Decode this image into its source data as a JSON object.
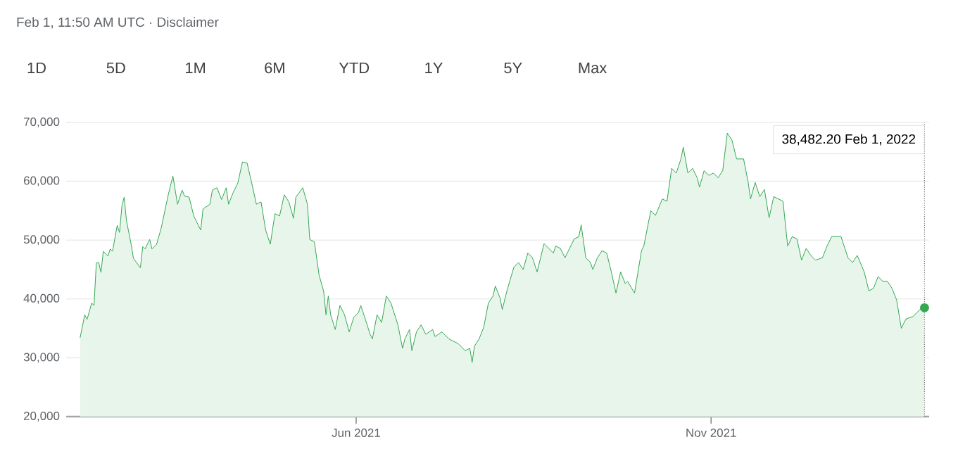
{
  "chart_data": {
    "type": "area",
    "subtitle": "Feb 1, 11:50 AM UTC · Disclaimer",
    "color": "#34a853",
    "grid": "y",
    "xlim": [
      "2021-01-27",
      "2022-02-03"
    ],
    "xticks": [
      {
        "value": "2021-06-01",
        "label": "Jun 2021"
      },
      {
        "value": "2021-11-01",
        "label": "Nov 2021"
      }
    ],
    "ylim": [
      20000,
      70000
    ],
    "ref_lines": [
      {
        "axis": "x",
        "value": "2022-02-01",
        "color": "#737373",
        "line_style": "dotted"
      }
    ],
    "yticks": [
      {
        "value": 20000,
        "label": "20,000"
      },
      {
        "value": 30000,
        "label": "30,000"
      },
      {
        "value": 40000,
        "label": "40,000"
      },
      {
        "value": 50000,
        "label": "50,000"
      },
      {
        "value": 60000,
        "label": "60,000"
      },
      {
        "value": 70000,
        "label": "70,000"
      }
    ],
    "annotations": [
      "1D",
      "5D",
      "1M",
      "6M",
      "YTD",
      "1Y",
      "5Y",
      "Max",
      "38,482.20 Feb 1, 2022"
    ],
    "x": [
      "2021-02-02",
      "2021-02-04",
      "2021-02-05",
      "2021-02-07",
      "2021-02-08",
      "2021-02-09",
      "2021-02-10",
      "2021-02-11",
      "2021-02-12",
      "2021-02-14",
      "2021-02-15",
      "2021-02-16",
      "2021-02-18",
      "2021-02-19",
      "2021-02-20",
      "2021-02-21",
      "2021-02-22",
      "2021-02-24",
      "2021-02-25",
      "2021-02-28",
      "2021-03-01",
      "2021-03-02",
      "2021-03-04",
      "2021-03-05",
      "2021-03-07",
      "2021-03-09",
      "2021-03-12",
      "2021-03-14",
      "2021-03-16",
      "2021-03-18",
      "2021-03-19",
      "2021-03-21",
      "2021-03-23",
      "2021-03-26",
      "2021-03-27",
      "2021-03-30",
      "2021-03-31",
      "2021-04-02",
      "2021-04-04",
      "2021-04-06",
      "2021-04-07",
      "2021-04-09",
      "2021-04-11",
      "2021-04-13",
      "2021-04-15",
      "2021-04-17",
      "2021-04-19",
      "2021-04-21",
      "2021-04-23",
      "2021-04-25",
      "2021-04-27",
      "2021-04-29",
      "2021-05-01",
      "2021-05-03",
      "2021-05-05",
      "2021-05-06",
      "2021-05-09",
      "2021-05-11",
      "2021-05-12",
      "2021-05-14",
      "2021-05-16",
      "2021-05-18",
      "2021-05-19",
      "2021-05-20",
      "2021-05-21",
      "2021-05-23",
      "2021-05-25",
      "2021-05-27",
      "2021-05-29",
      "2021-05-31",
      "2021-06-02",
      "2021-06-03",
      "2021-06-05",
      "2021-06-07",
      "2021-06-08",
      "2021-06-10",
      "2021-06-12",
      "2021-06-14",
      "2021-06-16",
      "2021-06-19",
      "2021-06-21",
      "2021-06-22",
      "2021-06-24",
      "2021-06-25",
      "2021-06-27",
      "2021-06-29",
      "2021-07-01",
      "2021-07-04",
      "2021-07-05",
      "2021-07-08",
      "2021-07-11",
      "2021-07-15",
      "2021-07-18",
      "2021-07-20",
      "2021-07-21",
      "2021-07-22",
      "2021-07-24",
      "2021-07-26",
      "2021-07-28",
      "2021-07-30",
      "2021-07-31",
      "2021-08-02",
      "2021-08-03",
      "2021-08-05",
      "2021-08-08",
      "2021-08-10",
      "2021-08-12",
      "2021-08-14",
      "2021-08-16",
      "2021-08-18",
      "2021-08-20",
      "2021-08-21",
      "2021-08-23",
      "2021-08-25",
      "2021-08-26",
      "2021-08-28",
      "2021-08-30",
      "2021-09-01",
      "2021-09-03",
      "2021-09-05",
      "2021-09-06",
      "2021-09-08",
      "2021-09-10",
      "2021-09-11",
      "2021-09-13",
      "2021-09-15",
      "2021-09-17",
      "2021-09-19",
      "2021-09-21",
      "2021-09-23",
      "2021-09-25",
      "2021-09-26",
      "2021-09-29",
      "2021-10-02",
      "2021-10-03",
      "2021-10-06",
      "2021-10-08",
      "2021-10-11",
      "2021-10-13",
      "2021-10-15",
      "2021-10-17",
      "2021-10-19",
      "2021-10-20",
      "2021-10-22",
      "2021-10-24",
      "2021-10-26",
      "2021-10-27",
      "2021-10-29",
      "2021-10-31",
      "2021-11-02",
      "2021-11-04",
      "2021-11-06",
      "2021-11-08",
      "2021-11-10",
      "2021-11-12",
      "2021-11-15",
      "2021-11-17",
      "2021-11-18",
      "2021-11-20",
      "2021-11-22",
      "2021-11-24",
      "2021-11-26",
      "2021-11-28",
      "2021-11-30",
      "2021-12-02",
      "2021-12-04",
      "2021-12-06",
      "2021-12-08",
      "2021-12-10",
      "2021-12-12",
      "2021-12-14",
      "2021-12-16",
      "2021-12-19",
      "2021-12-21",
      "2021-12-23",
      "2021-12-25",
      "2021-12-27",
      "2021-12-30",
      "2022-01-01",
      "2022-01-03",
      "2022-01-06",
      "2022-01-08",
      "2022-01-10",
      "2022-01-12",
      "2022-01-14",
      "2022-01-16",
      "2022-01-18",
      "2022-01-20",
      "2022-01-22",
      "2022-01-24",
      "2022-01-27",
      "2022-01-30",
      "2022-02-01"
    ],
    "values": [
      33400,
      37300,
      36500,
      39300,
      38900,
      46100,
      46200,
      44500,
      48100,
      47300,
      48500,
      48100,
      52500,
      51300,
      55700,
      57300,
      53300,
      49300,
      46900,
      45300,
      48900,
      48500,
      50100,
      48500,
      49300,
      52100,
      57700,
      60900,
      56100,
      58500,
      57500,
      57300,
      54100,
      51700,
      55300,
      56100,
      58500,
      58900,
      56900,
      58900,
      56100,
      58100,
      59700,
      63300,
      63100,
      59700,
      56100,
      56500,
      51700,
      49300,
      54500,
      54100,
      57700,
      56500,
      53700,
      57300,
      58900,
      56100,
      50100,
      49700,
      44100,
      41300,
      37300,
      40500,
      37300,
      34800,
      38900,
      37300,
      34400,
      36900,
      37700,
      38900,
      36500,
      34000,
      33200,
      37300,
      36000,
      40500,
      39300,
      35600,
      31600,
      33200,
      34800,
      31200,
      34400,
      35600,
      34000,
      34800,
      33600,
      34400,
      33200,
      32400,
      31200,
      31600,
      29200,
      32000,
      33200,
      35200,
      39300,
      40500,
      42200,
      40200,
      38200,
      41400,
      45400,
      46200,
      45000,
      47800,
      47000,
      44600,
      47800,
      49400,
      48600,
      47800,
      49000,
      48600,
      47000,
      48600,
      50200,
      50600,
      52600,
      47000,
      46200,
      45000,
      47000,
      48200,
      47800,
      44600,
      41000,
      44600,
      42600,
      43000,
      41000,
      48200,
      49000,
      55000,
      54200,
      57000,
      56600,
      62200,
      61400,
      63800,
      65800,
      61400,
      62200,
      60600,
      59000,
      61800,
      61000,
      61400,
      60600,
      61800,
      68200,
      67000,
      63800,
      63800,
      59800,
      57000,
      59800,
      57400,
      58600,
      53800,
      57400,
      57000,
      56600,
      49000,
      50600,
      50200,
      46600,
      48600,
      47400,
      46600,
      47000,
      49000,
      50600,
      50600,
      50600,
      47000,
      46200,
      47400,
      44600,
      41400,
      41800,
      43800,
      43000,
      43000,
      41800,
      39800,
      35000,
      36600,
      37000,
      38200,
      38500
    ]
  }
}
